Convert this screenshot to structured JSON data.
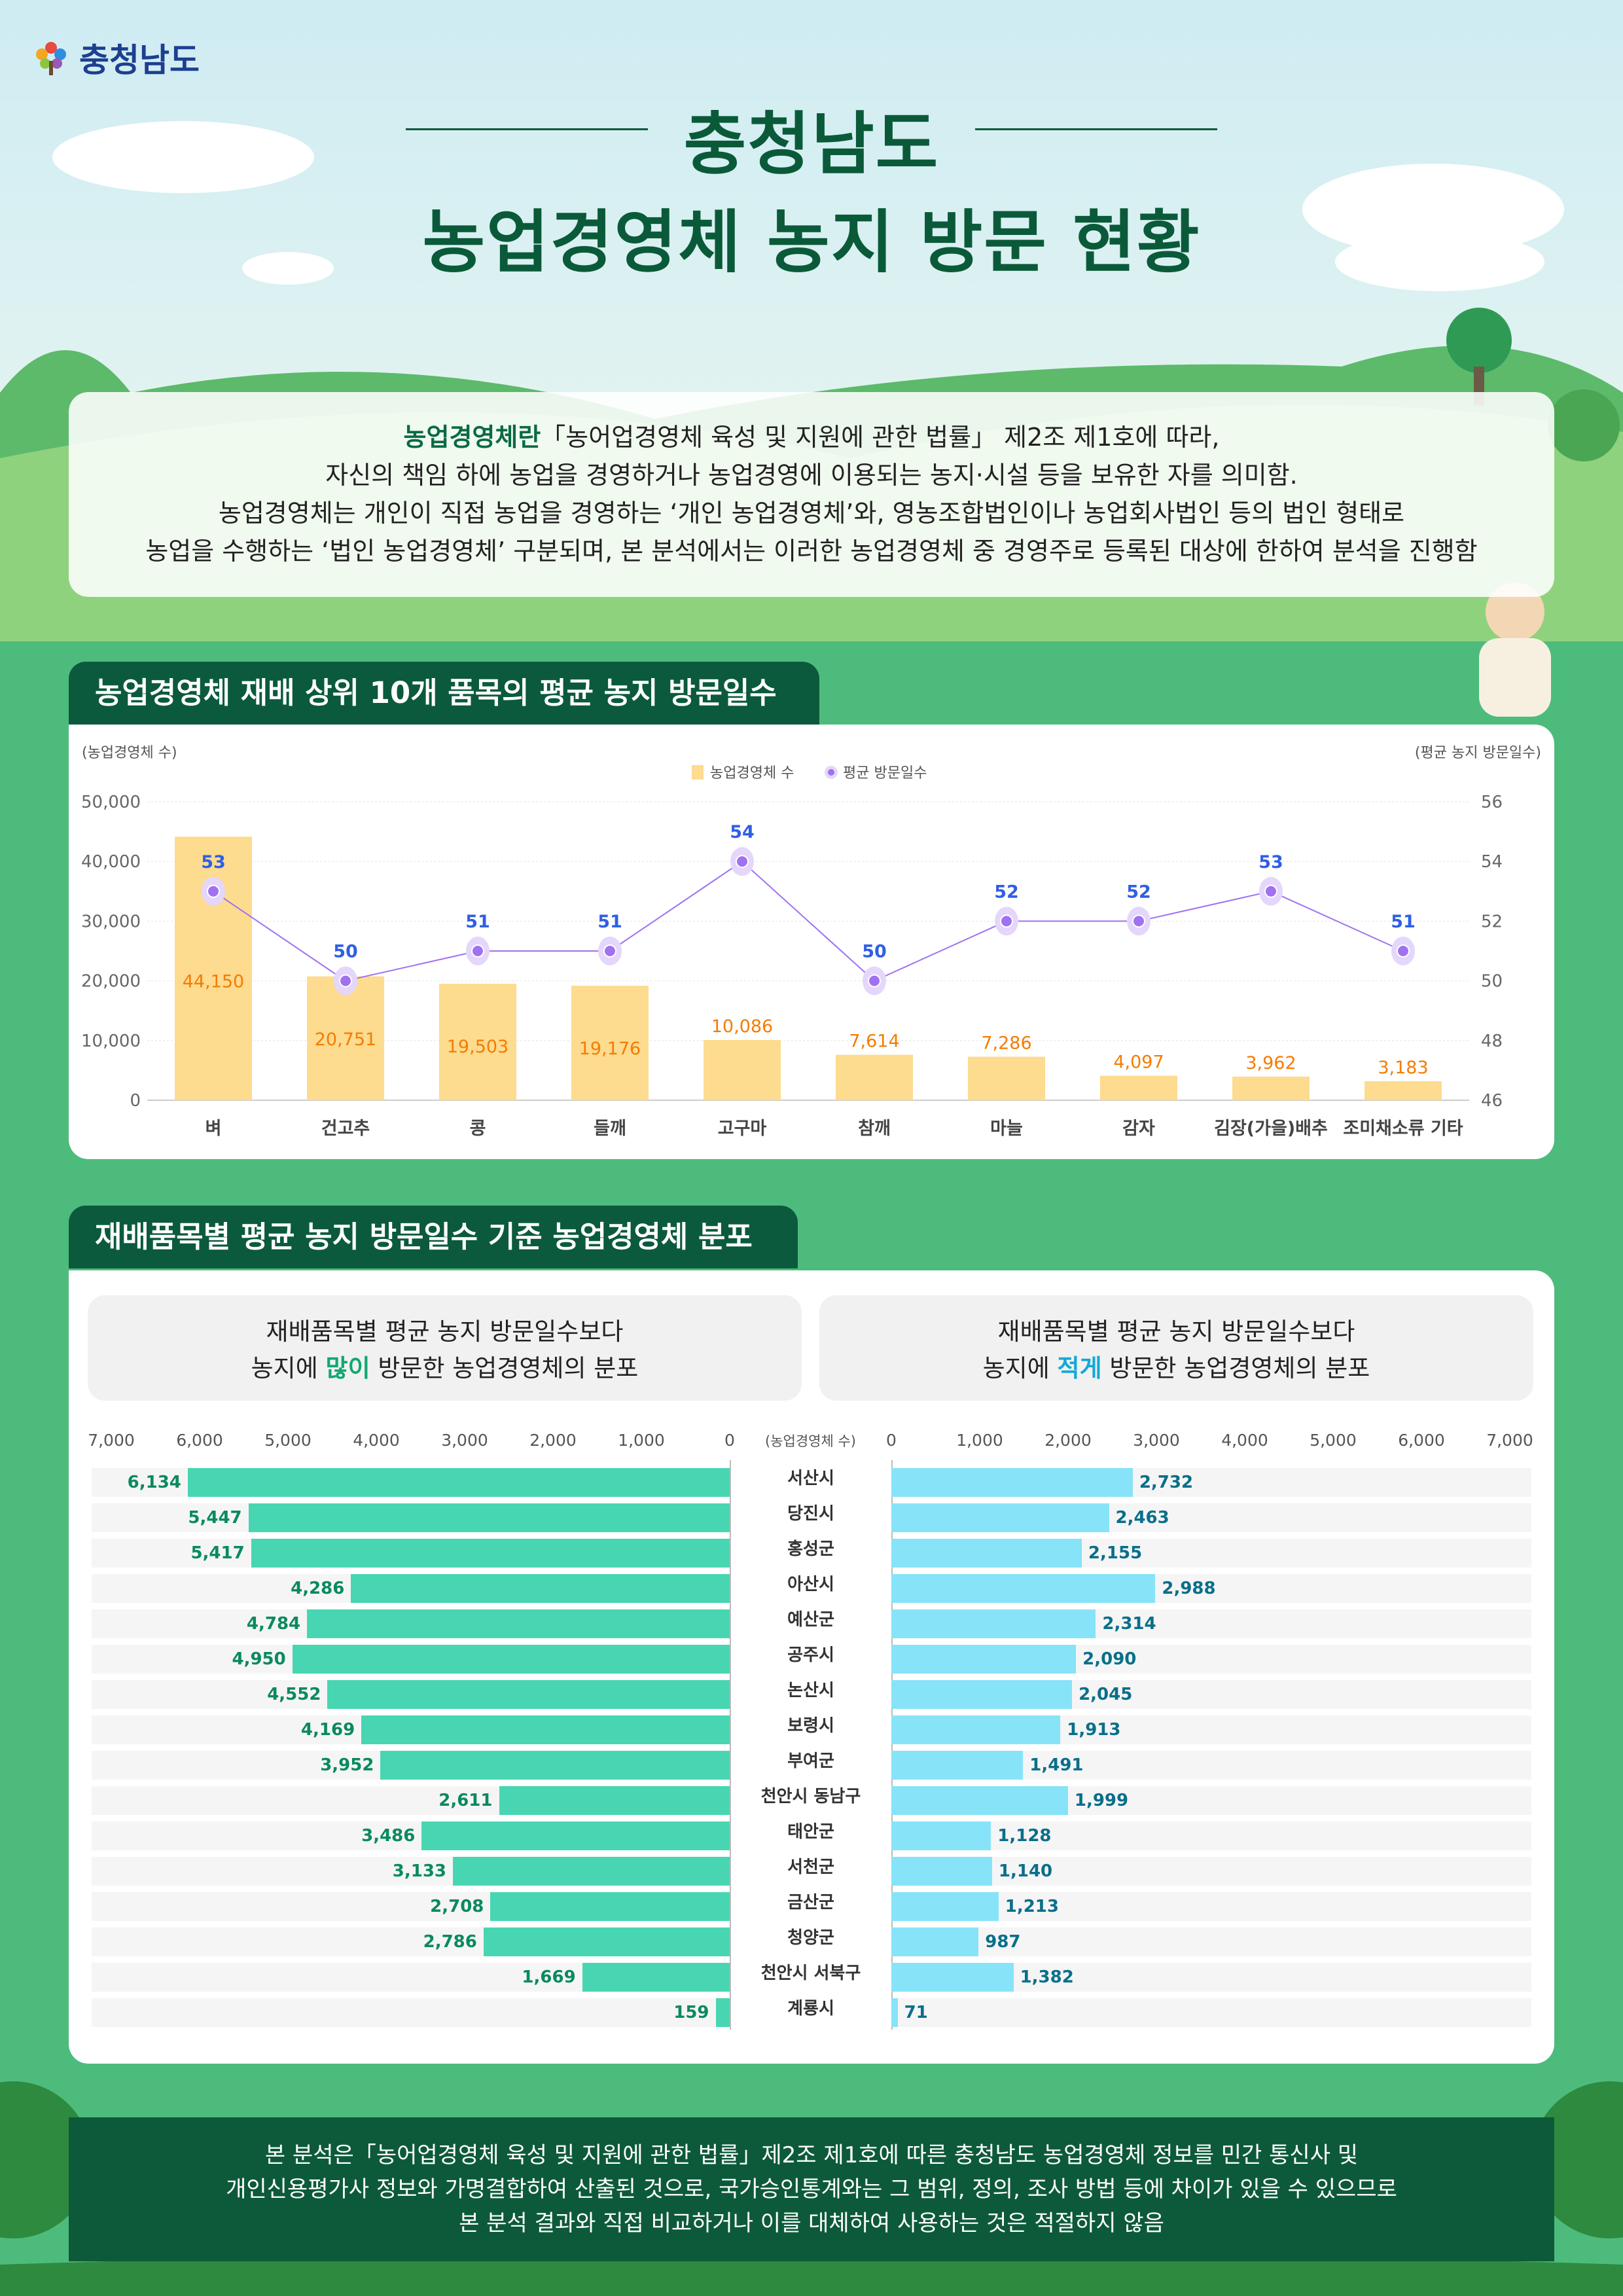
{
  "logo": {
    "text": "충청남도"
  },
  "title": {
    "line1": "충청남도",
    "line2": "농업경영체 농지 방문 현황"
  },
  "intro": {
    "term": "농업경영체란",
    "line1_rest": "「농어업경영체 육성 및 지원에 관한 법률」 제2조 제1호에 따라,",
    "line2": "자신의 책임 하에 농업을 경영하거나 농업경영에 이용되는 농지·시설 등을 보유한 자를 의미함.",
    "line3": "농업경영체는 개인이 직접 농업을 경영하는 ‘개인 농업경영체’와, 영농조합법인이나 농업회사법인 등의 법인 형태로",
    "line4": "농업을 수행하는 ‘법인 농업경영체’ 구분되며, 본 분석에서는 이러한 농업경영체 중 경영주로 등록된 대상에 한하여 분석을 진행함"
  },
  "section1": {
    "title": "농업경영체 재배 상위 10개 품목의 평균 농지 방문일수"
  },
  "section2": {
    "title": "재배품목별 평균 농지 방문일수 기준 농업경영체 분포",
    "left_box": {
      "line1": "재배품목별 평균 농지 방문일수보다",
      "pre": "농지에 ",
      "hl": "많이",
      "post": " 방문한 농업경영체의 분포"
    },
    "right_box": {
      "line1": "재배품목별 평균 농지 방문일수보다",
      "pre": "농지에 ",
      "hl": "적게",
      "post": " 방문한 농업경영체의 분포"
    }
  },
  "footer": {
    "line1": "본 분석은「농어업경영체 육성 및 지원에 관한 법률」제2조 제1호에 따른 충청남도 농업경영체 정보를 민간 통신사 및",
    "line2": "개인신용평가사 정보와 가명결합하여 산출된 것으로, 국가승인통계와는 그 범위, 정의, 조사 방법 등에 차이가 있을 수 있으므로",
    "line3": "본 분석 결과와 직접 비교하거나 이를 대체하여 사용하는 것은 적절하지 않음"
  },
  "chart_data": [
    {
      "type": "bar+line",
      "ylabel": "(농업경영체 수)",
      "y2label": "(평균 농지 방문일수)",
      "legend": [
        "농업경영체 수",
        "평균 방문일수"
      ],
      "legend_position": "top-center",
      "categories": [
        "벼",
        "건고추",
        "콩",
        "들깨",
        "고구마",
        "참깨",
        "마늘",
        "감자",
        "김장(가을)배추",
        "조미채소류 기타"
      ],
      "series": [
        {
          "name": "농업경영체 수",
          "type": "bar",
          "axis": "left",
          "color": "#fddb8f",
          "label_color": "#f57c00",
          "values": [
            44150,
            20751,
            19503,
            19176,
            10086,
            7614,
            7286,
            4097,
            3962,
            3183
          ],
          "labels": [
            "44,150",
            "20,751",
            "19,503",
            "19,176",
            "10,086",
            "7,614",
            "7,286",
            "4,097",
            "3,962",
            "3,183"
          ]
        },
        {
          "name": "평균 방문일수",
          "type": "line",
          "axis": "right",
          "color": "#a071f0",
          "label_color": "#2f5fe6",
          "values": [
            53,
            50,
            51,
            51,
            54,
            50,
            52,
            52,
            53,
            51
          ]
        }
      ],
      "ylim": [
        0,
        50000
      ],
      "yticks": [
        "0",
        "10,000",
        "20,000",
        "30,000",
        "40,000",
        "50,000"
      ],
      "y2lim": [
        46,
        56
      ],
      "y2ticks": [
        "46",
        "48",
        "50",
        "52",
        "54",
        "56"
      ],
      "grid": true
    },
    {
      "type": "butterfly-bar",
      "axis_label": "(농업경영체 수)",
      "xlim": [
        0,
        7000
      ],
      "xticks": [
        "0",
        "1,000",
        "2,000",
        "3,000",
        "4,000",
        "5,000",
        "6,000",
        "7,000"
      ],
      "categories": [
        "서산시",
        "당진시",
        "홍성군",
        "아산시",
        "예산군",
        "공주시",
        "논산시",
        "보령시",
        "부여군",
        "천안시 동남구",
        "태안군",
        "서천군",
        "금산군",
        "청양군",
        "천안시 서북구",
        "계룡시"
      ],
      "series": [
        {
          "name": "많이",
          "color": "#48d6b2",
          "label_color": "#0a8a5f",
          "values": [
            6134,
            5447,
            5417,
            4286,
            4784,
            4950,
            4552,
            4169,
            3952,
            2611,
            3486,
            3133,
            2708,
            2786,
            1669,
            159
          ],
          "labels": [
            "6,134",
            "5,447",
            "5,417",
            "4,286",
            "4,784",
            "4,950",
            "4,552",
            "4,169",
            "3,952",
            "2,611",
            "3,486",
            "3,133",
            "2,708",
            "2,786",
            "1,669",
            "159"
          ]
        },
        {
          "name": "적게",
          "color": "#87e3f8",
          "label_color": "#0a6f8a",
          "values": [
            2732,
            2463,
            2155,
            2988,
            2314,
            2090,
            2045,
            1913,
            1491,
            1999,
            1128,
            1140,
            1213,
            987,
            1382,
            71
          ],
          "labels": [
            "2,732",
            "2,463",
            "2,155",
            "2,988",
            "2,314",
            "2,090",
            "2,045",
            "1,913",
            "1,491",
            "1,999",
            "1,128",
            "1,140",
            "1,213",
            "987",
            "1,382",
            "71"
          ]
        }
      ]
    }
  ]
}
